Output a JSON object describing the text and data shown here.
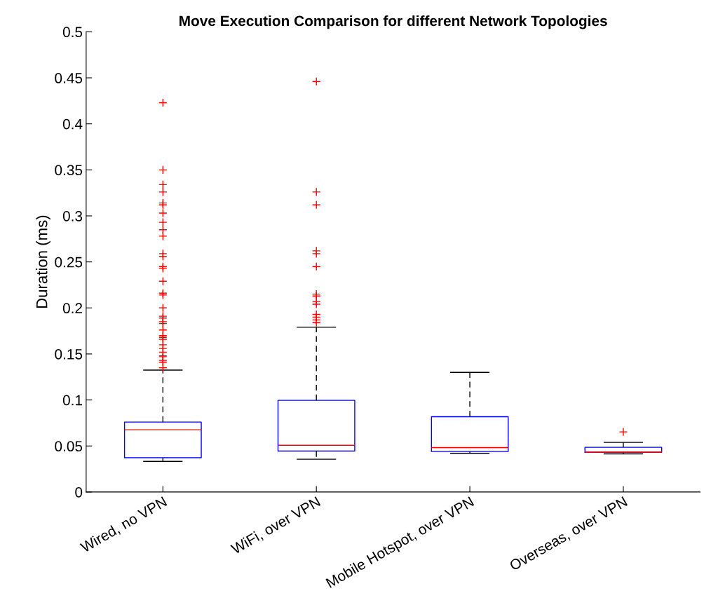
{
  "chart_data": {
    "type": "box",
    "title": "Move Execution Comparison for different Network Topologies",
    "ylabel": "Duration (ms)",
    "categories": [
      "Wired, no VPN",
      "WiFi, over VPN",
      "Mobile Hotspot, over VPN",
      "Overseas, over VPN"
    ],
    "series": [
      {
        "color": "#0000ff",
        "boxes": [
          {
            "low": 0.0333,
            "q1": 0.0373,
            "median": 0.0676,
            "q3": 0.076,
            "high": 0.1324,
            "outliers": [
              0.423,
              0.35,
              0.334,
              0.326,
              0.314,
              0.312,
              0.303,
              0.293,
              0.285,
              0.278,
              0.259,
              0.256,
              0.245,
              0.243,
              0.229,
              0.216,
              0.214,
              0.2,
              0.191,
              0.189,
              0.185,
              0.183,
              0.176,
              0.17,
              0.168,
              0.166,
              0.16,
              0.156,
              0.152,
              0.148,
              0.147,
              0.143,
              0.141,
              0.135
            ]
          },
          {
            "low": 0.0356,
            "q1": 0.0445,
            "median": 0.0508,
            "q3": 0.0996,
            "high": 0.179,
            "outliers": [
              0.446,
              0.326,
              0.312,
              0.262,
              0.259,
              0.245,
              0.215,
              0.213,
              0.207,
              0.204,
              0.193,
              0.19,
              0.187,
              0.184
            ]
          },
          {
            "low": 0.042,
            "q1": 0.044,
            "median": 0.0483,
            "q3": 0.0818,
            "high": 0.13
          },
          {
            "low": 0.0414,
            "q1": 0.0432,
            "median": 0.0434,
            "q3": 0.0486,
            "high": 0.0539,
            "outliers": [
              0.0653
            ]
          }
        ]
      }
    ],
    "ylim": [
      0,
      0.5
    ],
    "yticks": [
      0,
      0.05,
      0.1,
      0.15,
      0.2,
      0.25,
      0.3,
      0.35,
      0.4,
      0.45,
      0.5
    ],
    "grid": false,
    "marker": "cross"
  }
}
